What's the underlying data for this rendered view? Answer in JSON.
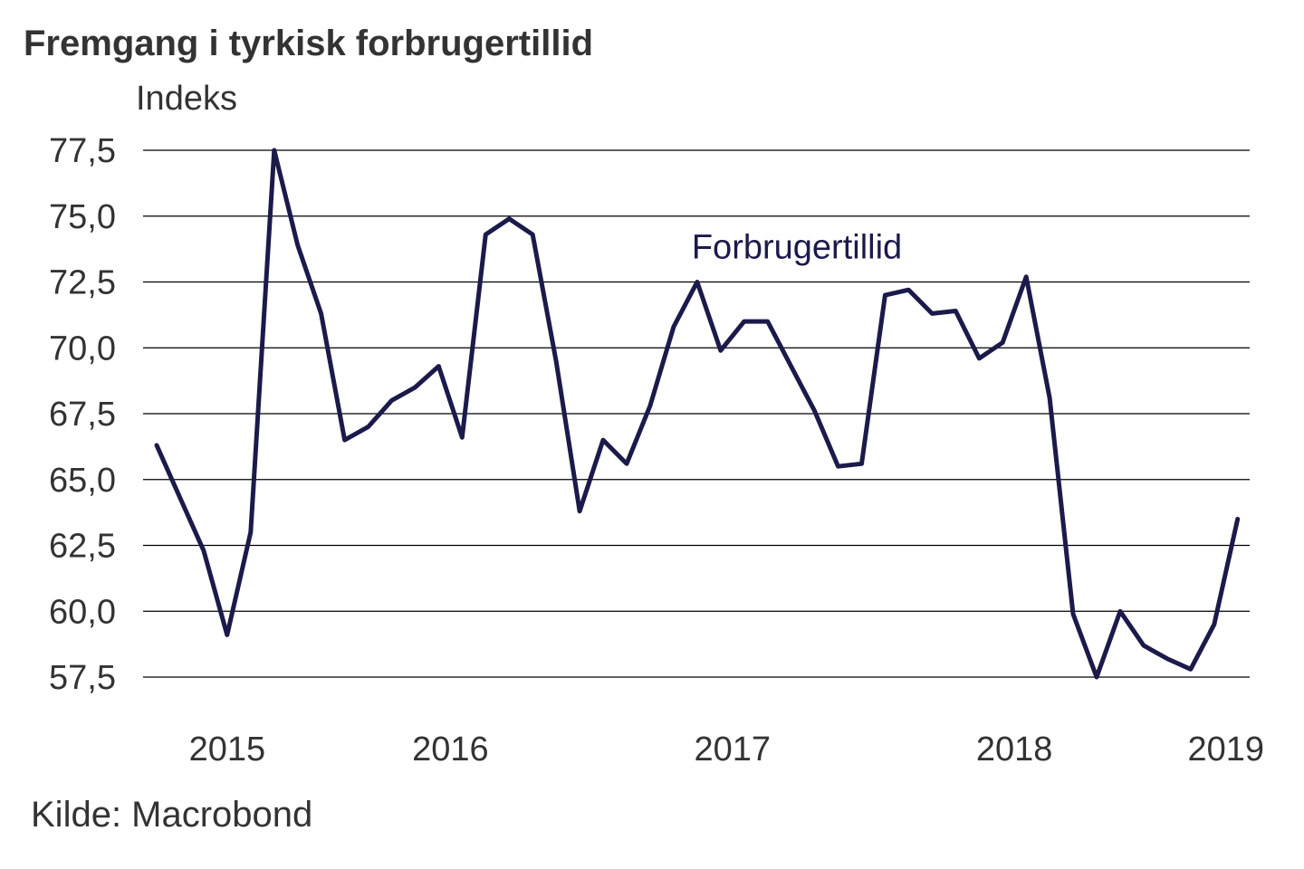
{
  "chart_data": {
    "type": "line",
    "title": "Fremgang i tyrkisk forbrugertillid",
    "ylabel": "Indeks",
    "source": "Kilde: Macrobond",
    "ylim": [
      57.5,
      77.5
    ],
    "y_ticks": [
      77.5,
      75.0,
      72.5,
      70.0,
      67.5,
      65.0,
      62.5,
      60.0,
      57.5
    ],
    "y_tick_labels": [
      "77,5",
      "75,0",
      "72,5",
      "70,0",
      "67,5",
      "65,0",
      "62,5",
      "60,0",
      "57,5"
    ],
    "x_tick_labels": [
      {
        "label": "2015",
        "x": 3
      },
      {
        "label": "2016",
        "x": 12.5
      },
      {
        "label": "2017",
        "x": 24.5
      },
      {
        "label": "2018",
        "x": 36.5
      },
      {
        "label": "2019",
        "x": 45.5
      }
    ],
    "grid": true,
    "line_color": "#1c1a4a",
    "annotation": {
      "text": "Forbrugertillid",
      "x": 23,
      "y": 73.8
    },
    "series": [
      {
        "name": "Forbrugertillid",
        "x": [
          0,
          1,
          2,
          3,
          4,
          5,
          6,
          7,
          8,
          9,
          10,
          11,
          12,
          13,
          14,
          15,
          16,
          17,
          18,
          19,
          20,
          21,
          22,
          23,
          24,
          25,
          26,
          27,
          28,
          29,
          30,
          31,
          32,
          33,
          34,
          35,
          36,
          37,
          38,
          39,
          40,
          41,
          42,
          43,
          44,
          45,
          46
        ],
        "values": [
          66.3,
          64.3,
          62.3,
          59.1,
          63.0,
          77.5,
          73.9,
          71.3,
          66.5,
          67.0,
          68.0,
          68.5,
          69.3,
          66.6,
          74.3,
          74.9,
          74.3,
          69.5,
          63.8,
          66.5,
          65.6,
          67.8,
          70.8,
          72.5,
          69.9,
          71.0,
          71.0,
          69.3,
          67.6,
          65.5,
          65.6,
          72.0,
          72.2,
          71.3,
          71.4,
          69.6,
          70.2,
          72.7,
          68.1,
          59.9,
          57.5,
          60.0,
          58.7,
          58.2,
          57.8,
          59.5,
          63.5
        ]
      }
    ]
  }
}
